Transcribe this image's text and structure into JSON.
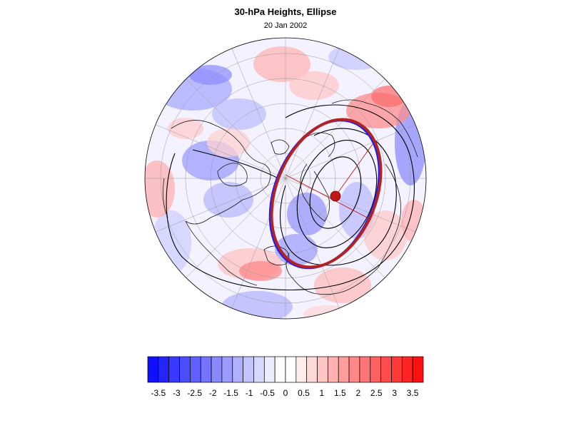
{
  "title": "30-hPa Heights, Ellipse",
  "subtitle": "20 Jan 2002",
  "colors": {
    "ellipse_red": "#b22222",
    "ellipse_blue": "#1a1aff",
    "contour": "#000000",
    "center_marker": "#c01818"
  },
  "legend": {
    "palette": [
      "#1010ff",
      "#2424ff",
      "#3838ff",
      "#4c4cff",
      "#6060ff",
      "#7474ff",
      "#8888ff",
      "#9c9cff",
      "#b0b0ff",
      "#c4c4ff",
      "#d8d8ff",
      "#ececff",
      "#ffffff",
      "#ffffff",
      "#ffecec",
      "#ffd8d8",
      "#ffc4c4",
      "#ffb0b0",
      "#ff9c9c",
      "#ff8888",
      "#ff7474",
      "#ff6060",
      "#ff4c4c",
      "#ff3838",
      "#ff2424",
      "#ff1010"
    ],
    "labels": [
      "-3.5",
      "-3",
      "-2.5",
      "-2",
      "-1.5",
      "-1",
      "-0.5",
      "0",
      "0.5",
      "1",
      "1.5",
      "2",
      "2.5",
      "3",
      "3.5"
    ]
  }
}
